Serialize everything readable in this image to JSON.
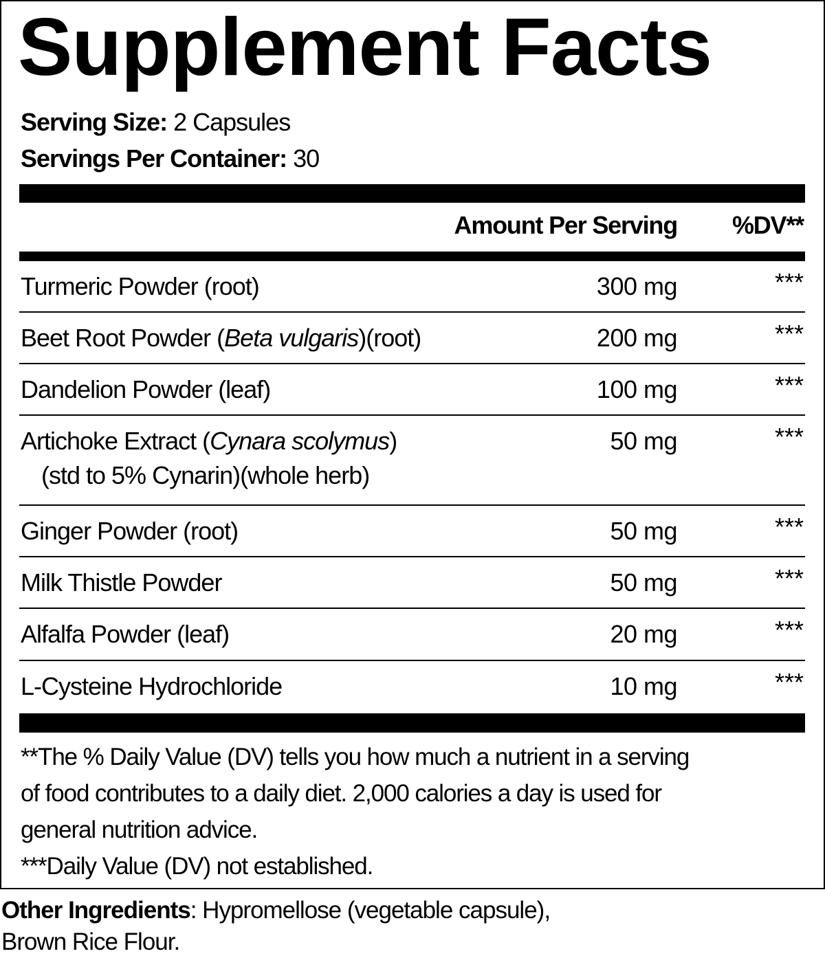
{
  "title": "Supplement Facts",
  "serving_size": {
    "label": "Serving Size:",
    "value": "2 Capsules"
  },
  "servings_per_container": {
    "label": "Servings Per Container:",
    "value": "30"
  },
  "header": {
    "amount": "Amount Per Serving",
    "dv": "%DV**"
  },
  "rows": [
    {
      "name": "Turmeric Powder (root)",
      "amount": "300 mg",
      "dv": "***"
    },
    {
      "name_pre": "Beet Root Powder (",
      "name_italic": "Beta vulgaris",
      "name_post": ")(root)",
      "amount": "200 mg",
      "dv": "***"
    },
    {
      "name": "Dandelion Powder (leaf)",
      "amount": "100 mg",
      "dv": "***"
    },
    {
      "name_pre": "Artichoke Extract (",
      "name_italic": "Cynara scolymus",
      "name_post": ")",
      "name_line2": "(std to 5% Cynarin)(whole herb)",
      "amount": "50 mg",
      "dv": "***"
    },
    {
      "name": "Ginger Powder (root)",
      "amount": "50 mg",
      "dv": "***"
    },
    {
      "name": "Milk Thistle Powder",
      "amount": "50 mg",
      "dv": "***"
    },
    {
      "name": "Alfalfa Powder (leaf)",
      "amount": "20 mg",
      "dv": "***"
    },
    {
      "name": "L-Cysteine Hydrochloride",
      "amount": "10 mg",
      "dv": "***"
    }
  ],
  "footnotes": [
    "**The % Daily Value (DV) tells you how much a nutrient in a serving",
    "of food contributes to a daily diet. 2,000 calories a day is used for",
    "general nutrition advice.",
    "***Daily Value (DV) not established."
  ],
  "other_ingredients": {
    "label": "Other Ingredients",
    "line1": ": Hypromellose (vegetable capsule),",
    "line2": "Brown Rice Flour."
  }
}
